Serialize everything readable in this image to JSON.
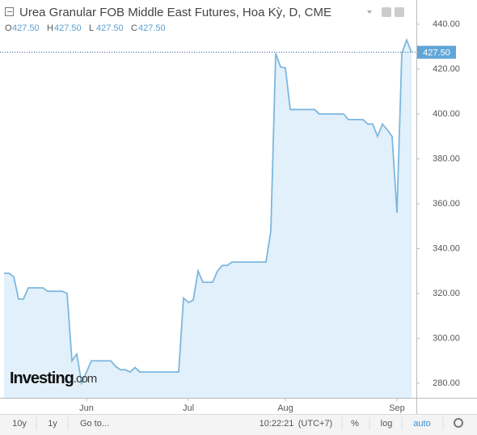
{
  "chart_data": {
    "type": "area",
    "title": "Urea Granular FOB Middle East Futures, Hoa Kỳ, D, CME",
    "ohlc": [
      {
        "name": "O",
        "label": "427.50"
      },
      {
        "name": "H",
        "label": "427.50"
      },
      {
        "name": "L",
        "label": "427.50"
      },
      {
        "name": "C",
        "label": "427.50"
      }
    ],
    "categories": [
      null,
      null,
      null,
      null,
      null,
      null,
      null,
      null,
      null,
      null,
      null,
      null,
      null,
      null,
      null,
      null,
      null,
      "Jun",
      null,
      null,
      null,
      null,
      null,
      null,
      null,
      null,
      null,
      null,
      null,
      null,
      null,
      null,
      null,
      null,
      null,
      null,
      null,
      null,
      "Jul",
      null,
      null,
      null,
      null,
      null,
      null,
      null,
      null,
      null,
      null,
      null,
      null,
      null,
      null,
      null,
      null,
      null,
      null,
      null,
      "Aug",
      null,
      null,
      null,
      null,
      null,
      null,
      null,
      null,
      null,
      null,
      null,
      null,
      null,
      null,
      null,
      null,
      null,
      null,
      null,
      null,
      null,
      null,
      "Sep",
      null,
      null,
      null
    ],
    "values": [
      329,
      329,
      327.5,
      317.5,
      317.5,
      322.5,
      322.5,
      322.5,
      322.5,
      321,
      321,
      321,
      321,
      320,
      290,
      293,
      280,
      285,
      290,
      290,
      290,
      290,
      290,
      287.5,
      286,
      286,
      285,
      287,
      285,
      285,
      285,
      285,
      285,
      285,
      285,
      285,
      285,
      318,
      316,
      317,
      330,
      325,
      325,
      325,
      330,
      332.5,
      332.5,
      334,
      334,
      334,
      334,
      334,
      334,
      334,
      334,
      348,
      427,
      421,
      420.5,
      402,
      402,
      402,
      402,
      402,
      402,
      400,
      400,
      400,
      400,
      400,
      400,
      397.5,
      397.5,
      397.5,
      397.5,
      395.5,
      395.5,
      390,
      395.5,
      393,
      390,
      356,
      427,
      433,
      427.5
    ],
    "color": "#7db7de",
    "fill": "#e1f0fa",
    "ylim": [
      273.5,
      450.8
    ],
    "yticks": [
      {
        "value": 280,
        "label": "280.00"
      },
      {
        "value": 300,
        "label": "300.00"
      },
      {
        "value": 320,
        "label": "320.00"
      },
      {
        "value": 340,
        "label": "340.00"
      },
      {
        "value": 360,
        "label": "360.00"
      },
      {
        "value": 380,
        "label": "380.00"
      },
      {
        "value": 400,
        "label": "400.00"
      },
      {
        "value": 420,
        "label": "420.00"
      },
      {
        "value": 440,
        "label": "440.00"
      }
    ],
    "price_line": {
      "value": 427.5,
      "label": "427.50"
    },
    "logo": {
      "brand": "Investing",
      "suffix": ".com"
    },
    "toolbar": [
      "10y",
      "1y",
      "Go to...",
      "10:22:21",
      "(UTC+7)",
      "%",
      "log",
      "auto"
    ]
  }
}
